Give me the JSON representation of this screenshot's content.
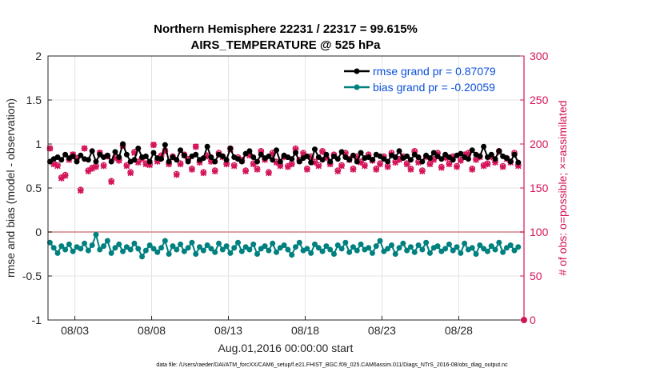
{
  "chart_data": {
    "type": "line",
    "title": "Northern Hemisphere 22231 / 22317 = 99.615%",
    "subtitle": "AIRS_TEMPERATURE @ 525 hPa",
    "xlabel": "Aug.01,2016 00:00:00 start",
    "ylabel": "rmse and bias (model - observation)",
    "y2label": "# of obs: o=possible; ×=assimilated",
    "footer": "data file: /Users/raeder/DAI/ATM_forcXX/CAM6_setup/f.e21.FHIST_BGC.f09_025.CAM6assim.011/Diags_NTrS_2016-08/obs_diag_output.nc",
    "x_tick_labels": [
      "08/03",
      "08/08",
      "08/13",
      "08/18",
      "08/23",
      "08/28"
    ],
    "x_tick_values": [
      3,
      8,
      13,
      18,
      23,
      28
    ],
    "xlim": [
      1.25,
      32.25
    ],
    "ylim": [
      -1,
      2
    ],
    "y_tick_labels": [
      "-1",
      "-0.5",
      "0",
      "0.5",
      "1",
      "1.5",
      "2"
    ],
    "y2lim": [
      0,
      300
    ],
    "y2_tick_labels": [
      "0",
      "50",
      "100",
      "150",
      "200",
      "250",
      "300"
    ],
    "grid": true,
    "legend_position": "top-right",
    "colors": {
      "rmse": "#000000",
      "bias": "#00807f",
      "obs": "#d4145a",
      "zero_line": "#d9a0a6",
      "legend_text": "#0b4fd8"
    },
    "x": [
      1.375,
      1.625,
      1.875,
      2.125,
      2.375,
      2.625,
      2.875,
      3.125,
      3.375,
      3.625,
      3.875,
      4.125,
      4.375,
      4.625,
      4.875,
      5.125,
      5.375,
      5.625,
      5.875,
      6.125,
      6.375,
      6.625,
      6.875,
      7.125,
      7.375,
      7.625,
      7.875,
      8.125,
      8.375,
      8.625,
      8.875,
      9.125,
      9.375,
      9.625,
      9.875,
      10.125,
      10.375,
      10.625,
      10.875,
      11.125,
      11.375,
      11.625,
      11.875,
      12.125,
      12.375,
      12.625,
      12.875,
      13.125,
      13.375,
      13.625,
      13.875,
      14.125,
      14.375,
      14.625,
      14.875,
      15.125,
      15.375,
      15.625,
      15.875,
      16.125,
      16.375,
      16.625,
      16.875,
      17.125,
      17.375,
      17.625,
      17.875,
      18.125,
      18.375,
      18.625,
      18.875,
      19.125,
      19.375,
      19.625,
      19.875,
      20.125,
      20.375,
      20.625,
      20.875,
      21.125,
      21.375,
      21.625,
      21.875,
      22.125,
      22.375,
      22.625,
      22.875,
      23.125,
      23.375,
      23.625,
      23.875,
      24.125,
      24.375,
      24.625,
      24.875,
      25.125,
      25.375,
      25.625,
      25.875,
      26.125,
      26.375,
      26.625,
      26.875,
      27.125,
      27.375,
      27.625,
      27.875,
      28.125,
      28.375,
      28.625,
      28.875,
      29.125,
      29.375,
      29.625,
      29.875,
      30.125,
      30.375,
      30.625,
      30.875,
      31.125,
      31.375,
      31.625,
      31.875
    ],
    "series": [
      {
        "name": "rmse grand pr = 0.87079",
        "values": [
          0.8,
          0.83,
          0.85,
          0.82,
          0.88,
          0.84,
          0.86,
          0.8,
          0.87,
          0.83,
          0.82,
          0.92,
          0.8,
          0.88,
          0.85,
          0.87,
          0.8,
          0.91,
          0.85,
          1.0,
          0.88,
          0.8,
          0.82,
          0.95,
          0.85,
          0.86,
          0.8,
          0.9,
          0.84,
          0.83,
          0.99,
          0.8,
          0.85,
          0.82,
          0.93,
          0.87,
          0.8,
          0.86,
          0.88,
          0.82,
          0.84,
          0.97,
          0.85,
          0.8,
          0.88,
          0.86,
          0.82,
          0.95,
          0.85,
          0.83,
          0.8,
          0.89,
          0.92,
          0.85,
          0.8,
          0.88,
          0.84,
          0.86,
          0.82,
          0.93,
          0.8,
          0.87,
          0.85,
          0.83,
          0.9,
          0.8,
          0.84,
          0.86,
          0.79,
          0.94,
          0.85,
          0.82,
          0.88,
          0.8,
          0.86,
          0.83,
          0.91,
          0.85,
          0.82,
          0.87,
          0.8,
          0.9,
          0.84,
          0.85,
          0.82,
          0.88,
          0.86,
          0.83,
          0.8,
          0.87,
          0.85,
          0.92,
          0.84,
          0.86,
          0.82,
          0.88,
          0.85,
          0.8,
          0.87,
          0.84,
          0.9,
          0.86,
          0.83,
          0.88,
          0.85,
          0.82,
          0.87,
          0.89,
          0.85,
          0.83,
          0.93,
          0.88,
          0.86,
          0.97,
          0.85,
          0.88,
          0.83,
          0.92,
          0.86,
          0.84,
          0.8,
          0.88,
          0.79
        ]
      },
      {
        "name": "bias grand pr = -0.20059",
        "values": [
          -0.12,
          -0.18,
          -0.24,
          -0.16,
          -0.2,
          -0.14,
          -0.22,
          -0.17,
          -0.19,
          -0.13,
          -0.21,
          -0.15,
          -0.03,
          -0.2,
          -0.16,
          -0.1,
          -0.24,
          -0.18,
          -0.14,
          -0.22,
          -0.17,
          -0.2,
          -0.13,
          -0.19,
          -0.28,
          -0.21,
          -0.15,
          -0.19,
          -0.23,
          -0.18,
          -0.1,
          -0.25,
          -0.16,
          -0.2,
          -0.14,
          -0.22,
          -0.18,
          -0.12,
          -0.25,
          -0.17,
          -0.21,
          -0.15,
          -0.19,
          -0.23,
          -0.13,
          -0.2,
          -0.16,
          -0.24,
          -0.18,
          -0.12,
          -0.22,
          -0.17,
          -0.2,
          -0.14,
          -0.25,
          -0.19,
          -0.16,
          -0.21,
          -0.13,
          -0.23,
          -0.18,
          -0.15,
          -0.2,
          -0.26,
          -0.17,
          -0.12,
          -0.21,
          -0.19,
          -0.24,
          -0.14,
          -0.18,
          -0.22,
          -0.16,
          -0.2,
          -0.25,
          -0.15,
          -0.19,
          -0.12,
          -0.23,
          -0.17,
          -0.21,
          -0.14,
          -0.2,
          -0.18,
          -0.24,
          -0.16,
          -0.1,
          -0.22,
          -0.19,
          -0.15,
          -0.25,
          -0.18,
          -0.13,
          -0.21,
          -0.17,
          -0.23,
          -0.15,
          -0.2,
          -0.12,
          -0.24,
          -0.18,
          -0.16,
          -0.22,
          -0.19,
          -0.14,
          -0.21,
          -0.17,
          -0.24,
          -0.13,
          -0.2,
          -0.18,
          -0.25,
          -0.15,
          -0.19,
          -0.22,
          -0.16,
          -0.2,
          -0.12,
          -0.23,
          -0.18,
          -0.15,
          -0.21,
          -0.17
        ]
      }
    ],
    "obs_count": {
      "name": "# of obs",
      "possible": [
        195,
        178,
        176,
        162,
        165,
        183,
        188,
        184,
        148,
        195,
        170,
        173,
        175,
        190,
        176,
        186,
        158,
        185,
        182,
        198,
        176,
        168,
        191,
        180,
        184,
        178,
        177,
        199,
        181,
        187,
        192,
        178,
        186,
        166,
        178,
        188,
        183,
        172,
        197,
        180,
        168,
        187,
        181,
        170,
        190,
        186,
        178,
        195,
        176,
        185,
        182,
        170,
        188,
        178,
        172,
        192,
        183,
        168,
        190,
        180,
        176,
        186,
        175,
        178,
        195,
        182,
        190,
        172,
        186,
        180,
        176,
        192,
        185,
        178,
        188,
        170,
        176,
        190,
        183,
        172,
        186,
        180,
        176,
        188,
        182,
        172,
        178,
        186,
        175,
        190,
        180,
        183,
        186,
        178,
        172,
        192,
        180,
        170,
        186,
        178,
        183,
        190,
        174,
        185,
        178,
        186,
        175,
        182,
        188,
        190,
        172,
        183,
        186,
        176,
        178,
        186,
        180,
        192,
        175,
        184,
        180,
        190,
        176
      ],
      "assimilated": [
        195,
        177,
        175,
        161,
        164,
        182,
        188,
        183,
        147,
        195,
        169,
        172,
        174,
        190,
        175,
        186,
        157,
        184,
        181,
        198,
        175,
        167,
        190,
        179,
        183,
        177,
        176,
        199,
        180,
        186,
        192,
        177,
        185,
        165,
        177,
        187,
        182,
        171,
        197,
        179,
        167,
        186,
        180,
        169,
        189,
        185,
        177,
        194,
        175,
        184,
        181,
        169,
        187,
        177,
        171,
        191,
        182,
        167,
        189,
        179,
        175,
        185,
        174,
        177,
        194,
        181,
        189,
        171,
        185,
        179,
        175,
        191,
        184,
        177,
        187,
        169,
        175,
        189,
        182,
        171,
        185,
        179,
        175,
        187,
        181,
        171,
        177,
        185,
        174,
        189,
        179,
        182,
        185,
        177,
        171,
        191,
        179,
        169,
        185,
        177,
        182,
        189,
        173,
        184,
        177,
        185,
        174,
        181,
        187,
        189,
        171,
        182,
        185,
        175,
        177,
        185,
        179,
        191,
        174,
        183,
        179,
        189,
        175
      ]
    }
  }
}
